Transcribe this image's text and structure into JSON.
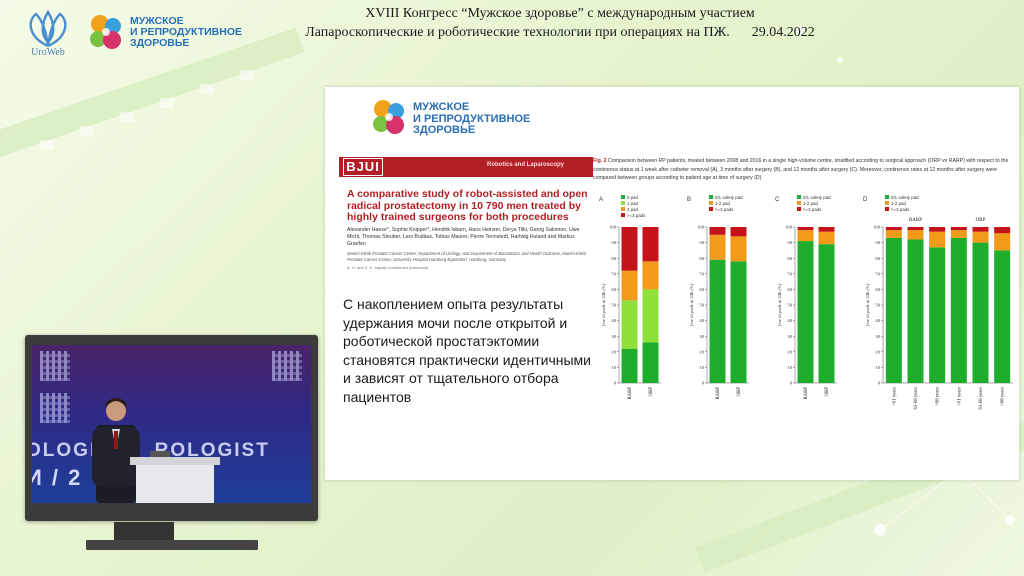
{
  "header": {
    "org_name": "UroWeb",
    "brand_line1": "МУЖСКОЕ",
    "brand_line2": "И РЕПРОДУКТИВНОЕ",
    "brand_line3": "ЗДОРОВЬЕ",
    "line1": "XVIII Конгресс “Мужское здоровье” с международным участием",
    "line2": "Лапароскопические и роботические технологии при операциях на ПЖ.",
    "date": "29.04.2022"
  },
  "slide": {
    "brand_line1": "МУЖСКОЕ",
    "brand_line2": "И РЕПРОДУКТИВНОЕ",
    "brand_line3": "ЗДОРОВЬЕ",
    "journal": "BJUI",
    "section": "Robotics and Laparoscopy",
    "paper_title": "A comparative study of robot-assisted and open radical prostatectomy in 10 790 men treated by highly trained surgeons for both procedures",
    "authors": "Alexander Haese*, Sophie Knipper*, Hendrik Isbarn, Hans Heinzer, Derya Tilki, Georg Salomon, Uwe Michl, Thomas Steuber, Lars Budäus, Tobias Maurer, Pierre Tennstedt, Hartwig Huland and Markus Graefen",
    "affiliation": "Martini-Klinik Prostate Cancer Center, Department of Urology, and Department of Biostatistics and Health Outcome, Martini-Klinik Prostate Cancer Center, University Hospital Hamburg-Eppendorf, Hamburg, Germany",
    "note": "A. H. and S. K. equally contributed authorship.",
    "body_text": "С накоплением опыта результаты удержания мочи после открытой и роботической простатэктомии становятся практически идентичными и зависят от тщательного отбора пациентов",
    "fig_label": "Fig. 2",
    "fig_caption": "Comparison between RP patients, treated between 2008 and 2016 in a single high-volume centre, stratified according to surgical approach (ORP vs RARP) with respect to the continence status at 1 week after catheter removal (A), 3 months after surgery (B), and 12 months after surgery (C). Moreover, continence rates at 12 months after surgery were compared between groups according to patient age at time of surgery (D)."
  },
  "colors": {
    "green": "#1fae2c",
    "light_green": "#8ee03a",
    "orange": "#f29a1a",
    "red": "#c4141a",
    "brand_blue": "#2a6fb6",
    "journal_red": "#b21f24"
  },
  "chart_data": [
    {
      "type": "bar",
      "panel": "A",
      "stacked": true,
      "categories": [
        "RARP",
        "ORP"
      ],
      "ylabel": "Use of pads in 24h (%)",
      "ylim": [
        0,
        100
      ],
      "yticks": [
        0,
        10,
        20,
        30,
        40,
        50,
        60,
        70,
        80,
        90,
        100
      ],
      "legend": [
        "0 pad",
        "1 pad",
        "2 pad",
        ">=3 pads"
      ],
      "series": [
        {
          "name": "0 pad",
          "color": "#1fae2c",
          "values": [
            22,
            26
          ]
        },
        {
          "name": "1 pad",
          "color": "#8ee03a",
          "values": [
            31,
            34
          ]
        },
        {
          "name": "2 pad",
          "color": "#f29a1a",
          "values": [
            19,
            18
          ]
        },
        {
          "name": ">=3 pads",
          "color": "#c4141a",
          "values": [
            28,
            22
          ]
        }
      ]
    },
    {
      "type": "bar",
      "panel": "B",
      "stacked": true,
      "categories": [
        "RARP",
        "ORP"
      ],
      "ylabel": "Use of pads in 24h (%)",
      "ylim": [
        0,
        100
      ],
      "yticks": [
        0,
        10,
        20,
        30,
        40,
        50,
        60,
        70,
        80,
        90,
        100
      ],
      "legend": [
        "0/1 safety pad",
        "1-2 pad",
        ">=3 pads"
      ],
      "series": [
        {
          "name": "0/1 safety pad",
          "color": "#1fae2c",
          "values": [
            79,
            78
          ]
        },
        {
          "name": "1-2 pad",
          "color": "#f29a1a",
          "values": [
            16,
            16
          ]
        },
        {
          "name": ">=3 pads",
          "color": "#c4141a",
          "values": [
            5,
            6
          ]
        }
      ]
    },
    {
      "type": "bar",
      "panel": "C",
      "stacked": true,
      "categories": [
        "RARP",
        "ORP"
      ],
      "ylabel": "Use of pads in 24h (%)",
      "ylim": [
        0,
        100
      ],
      "yticks": [
        0,
        10,
        20,
        30,
        40,
        50,
        60,
        70,
        80,
        90,
        100
      ],
      "legend": [
        "0/1 safety pad",
        "1-2 pad",
        ">=3 pads"
      ],
      "series": [
        {
          "name": "0/1 safety pad",
          "color": "#1fae2c",
          "values": [
            91,
            89
          ]
        },
        {
          "name": "1-2 pad",
          "color": "#f29a1a",
          "values": [
            7,
            8
          ]
        },
        {
          "name": ">=3 pads",
          "color": "#c4141a",
          "values": [
            2,
            3
          ]
        }
      ]
    },
    {
      "type": "bar",
      "panel": "D",
      "stacked": true,
      "groups": [
        "RARP",
        "ORP"
      ],
      "categories": [
        "<61 years",
        "61-68 years",
        ">68 years",
        "<61 years",
        "61-68 years",
        ">68 years"
      ],
      "ylabel": "Use of pads in 24h (%)",
      "ylim": [
        0,
        100
      ],
      "yticks": [
        0,
        10,
        20,
        30,
        40,
        50,
        60,
        70,
        80,
        90,
        100
      ],
      "legend": [
        "0/1 safety pad",
        "1-2 pad",
        ">=3 pads"
      ],
      "series": [
        {
          "name": "0/1 safety pad",
          "color": "#1fae2c",
          "values": [
            93,
            92,
            87,
            93,
            90,
            85
          ]
        },
        {
          "name": "1-2 pad",
          "color": "#f29a1a",
          "values": [
            5,
            6,
            10,
            5,
            7,
            11
          ]
        },
        {
          "name": ">=3 pads",
          "color": "#c4141a",
          "values": [
            2,
            2,
            3,
            2,
            3,
            4
          ]
        }
      ]
    }
  ]
}
